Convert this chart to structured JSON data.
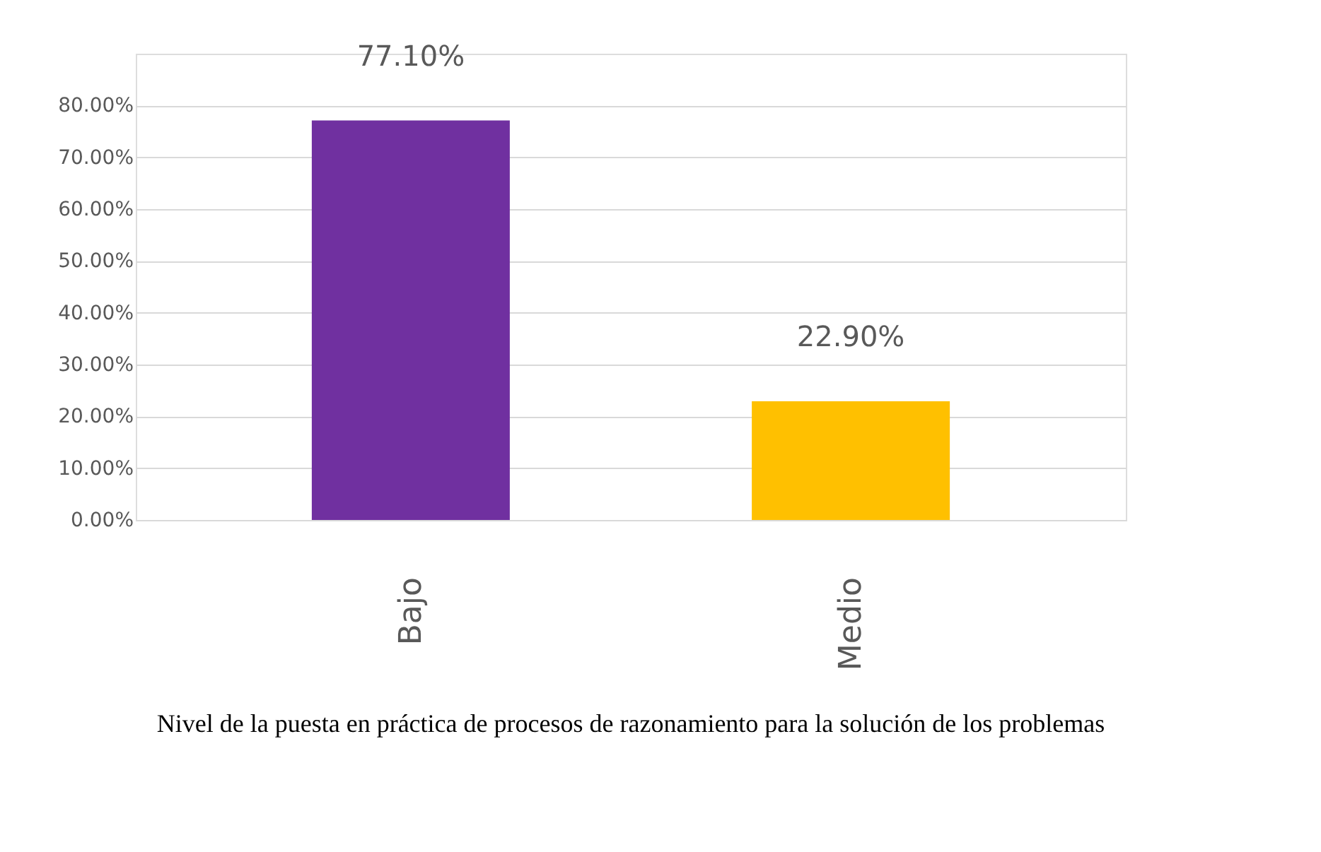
{
  "chart_data": {
    "type": "bar",
    "categories": [
      "Bajo",
      "Medio"
    ],
    "values": [
      77.1,
      22.9
    ],
    "colors": [
      "#7030a0",
      "#ffc000"
    ],
    "value_labels": [
      "77.10%",
      "22.90%"
    ],
    "ylim": [
      0,
      90
    ],
    "yticks": [
      {
        "value": 0,
        "label": "0.00%"
      },
      {
        "value": 10,
        "label": "10.00%"
      },
      {
        "value": 20,
        "label": "20.00%"
      },
      {
        "value": 30,
        "label": "30.00%"
      },
      {
        "value": 40,
        "label": "40.00%"
      },
      {
        "value": 50,
        "label": "50.00%"
      },
      {
        "value": 60,
        "label": "60.00%"
      },
      {
        "value": 70,
        "label": "70.00%"
      },
      {
        "value": 80,
        "label": "80.00%"
      }
    ],
    "grid": "y",
    "annotations": [
      "Nivel de la puesta en práctica de procesos de razonamiento para la solución de los problemas"
    ]
  }
}
